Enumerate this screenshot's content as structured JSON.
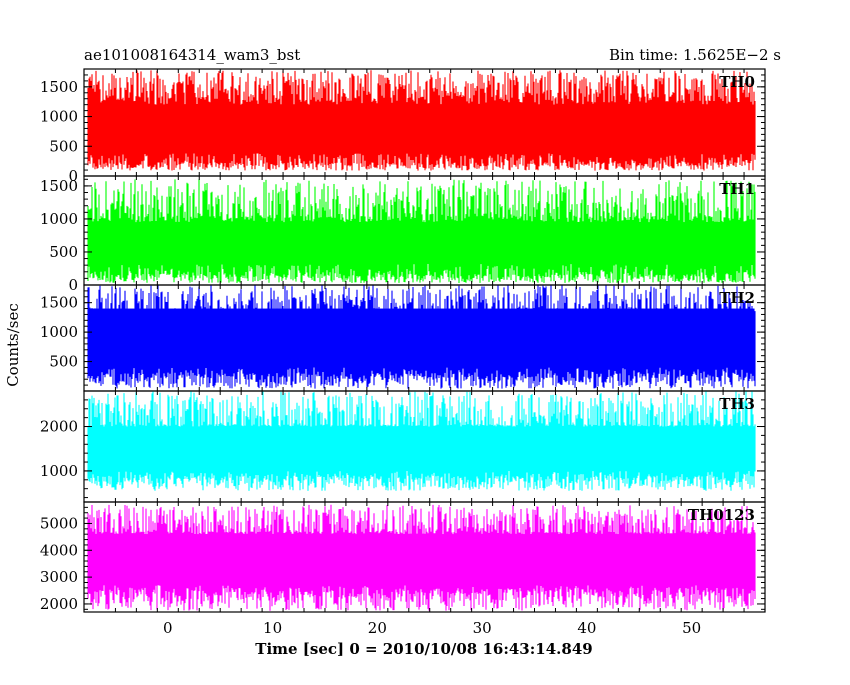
{
  "header": {
    "title_left": "ae101008164314_wam3_bst",
    "title_right": "Bin time: 1.5625E−2 s"
  },
  "chart_data": {
    "type": "line",
    "xlabel": "Time [sec] 0 = 2010/10/08 16:43:14.849",
    "ylabel": "Counts/sec",
    "xlim": [
      -8.0,
      57.0
    ],
    "xticks": [
      0,
      10,
      20,
      30,
      40,
      50
    ],
    "xtick_labels": [
      "0",
      "10",
      "20",
      "30",
      "40",
      "50"
    ],
    "data_x_range": [
      -7.6,
      56.0
    ],
    "bin_time_s": 0.015625,
    "panels": [
      {
        "name": "TH0",
        "color": "#ff0000",
        "ylim": [
          0,
          1800
        ],
        "yticks": [
          0,
          500,
          1000,
          1500
        ],
        "ytick_labels": [
          "0",
          "500",
          "1000",
          "1500"
        ],
        "min_env": [
          90,
          230
        ],
        "max_env": [
          1350,
          1780
        ],
        "core": [
          380,
          1200
        ]
      },
      {
        "name": "TH1",
        "color": "#00ff00",
        "ylim": [
          0,
          1650
        ],
        "yticks": [
          0,
          500,
          1000,
          1500
        ],
        "ytick_labels": [
          "0",
          "500",
          "1000",
          "1500"
        ],
        "min_env": [
          30,
          170
        ],
        "max_env": [
          1050,
          1600
        ],
        "core": [
          320,
          950
        ]
      },
      {
        "name": "TH2",
        "color": "#0000ff",
        "ylim": [
          0,
          1800
        ],
        "yticks": [
          500,
          1000,
          1500
        ],
        "ytick_labels": [
          "500",
          "1000",
          "1500"
        ],
        "min_env": [
          40,
          300
        ],
        "max_env": [
          1350,
          1800
        ],
        "core": [
          400,
          1400
        ]
      },
      {
        "name": "TH3",
        "color": "#00ffff",
        "ylim": [
          300,
          2800
        ],
        "yticks": [
          1000,
          2000
        ],
        "ytick_labels": [
          "1000",
          "2000"
        ],
        "min_env": [
          550,
          900
        ],
        "max_env": [
          2050,
          2800
        ],
        "core": [
          1000,
          2000
        ]
      },
      {
        "name": "TH0123",
        "color": "#ff00ff",
        "ylim": [
          1700,
          5800
        ],
        "yticks": [
          2000,
          3000,
          4000,
          5000
        ],
        "ytick_labels": [
          "2000",
          "3000",
          "4000",
          "5000"
        ],
        "min_env": [
          1750,
          2600
        ],
        "max_env": [
          4700,
          5700
        ],
        "core": [
          2700,
          4600
        ]
      }
    ]
  }
}
